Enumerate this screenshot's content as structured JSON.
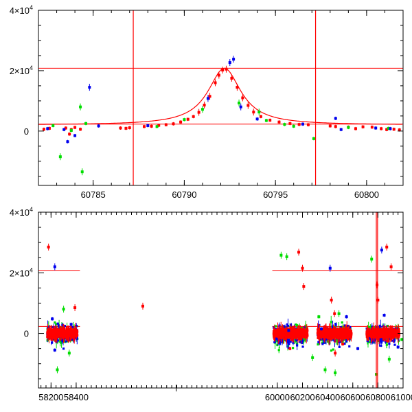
{
  "chart_data": [
    {
      "type": "scatter",
      "panel": "top",
      "title": "",
      "xlabel": "",
      "ylabel": "",
      "xlim": [
        60782,
        60802
      ],
      "ylim": [
        -18000,
        40000
      ],
      "x_ticks": [
        60785,
        60790,
        60795,
        60800
      ],
      "x_tick_labels": [
        "60785",
        "60790",
        "60795",
        "60800"
      ],
      "y_ticks": [
        0,
        20000,
        40000
      ],
      "y_tick_labels": [
        {
          "base": "0",
          "exp": ""
        },
        {
          "base": "2×10",
          "exp": "4"
        },
        {
          "base": "4×10",
          "exp": "4"
        }
      ],
      "colors": {
        "red": "#ff0000",
        "green": "#00dd00",
        "blue": "#0000ee",
        "line": "#ff0000"
      },
      "vlines": [
        60787.2,
        60797.2
      ],
      "hlines": [
        20800,
        2300
      ],
      "model_curve": {
        "baseline": 2000,
        "peak_x": 60792.2,
        "peak_y": 20800,
        "width": 1.1
      },
      "series": [
        {
          "name": "red",
          "color": "#ff0000",
          "points": [
            [
              60782.3,
              600
            ],
            [
              60782.6,
              900
            ],
            [
              60783.5,
              1000
            ],
            [
              60783.7,
              -1000
            ],
            [
              60783.8,
              500
            ],
            [
              60784.0,
              1200
            ],
            [
              60784.3,
              600
            ],
            [
              60786.5,
              1000
            ],
            [
              60786.8,
              900
            ],
            [
              60787.0,
              1100
            ],
            [
              60787.8,
              1500
            ],
            [
              60788.2,
              1600
            ],
            [
              60788.6,
              1900
            ],
            [
              60789.0,
              2100
            ],
            [
              60789.4,
              2400
            ],
            [
              60789.8,
              3000
            ],
            [
              60790.2,
              3900
            ],
            [
              60790.5,
              4800
            ],
            [
              60790.8,
              6200
            ],
            [
              60791.1,
              8600
            ],
            [
              60791.4,
              11500
            ],
            [
              60791.7,
              16000
            ],
            [
              60791.9,
              18500
            ],
            [
              60792.1,
              20200
            ],
            [
              60792.3,
              20500
            ],
            [
              60792.6,
              17500
            ],
            [
              60792.9,
              14500
            ],
            [
              60793.2,
              11000
            ],
            [
              60793.5,
              8500
            ],
            [
              60793.8,
              6300
            ],
            [
              60794.2,
              4800
            ],
            [
              60794.7,
              3600
            ],
            [
              60795.2,
              3000
            ],
            [
              60795.8,
              2500
            ],
            [
              60796.3,
              2200
            ],
            [
              60796.8,
              2100
            ],
            [
              60798.0,
              1700
            ],
            [
              60798.3,
              1500
            ],
            [
              60799.0,
              1300
            ],
            [
              60799.4,
              800
            ],
            [
              60799.8,
              1400
            ],
            [
              60800.3,
              1300
            ],
            [
              60800.8,
              800
            ],
            [
              60801.1,
              500
            ],
            [
              60801.5,
              600
            ],
            [
              60801.8,
              400
            ]
          ]
        },
        {
          "name": "green",
          "color": "#00dd00",
          "points": [
            [
              60782.8,
              1800
            ],
            [
              60783.2,
              -8500
            ],
            [
              60783.8,
              200
            ],
            [
              60784.3,
              8000
            ],
            [
              60784.4,
              -13500
            ],
            [
              60784.6,
              2500
            ],
            [
              60788.5,
              1500
            ],
            [
              60790.0,
              3800
            ],
            [
              60791.0,
              7200
            ],
            [
              60793.0,
              9300
            ],
            [
              60794.1,
              6300
            ],
            [
              60794.5,
              3500
            ],
            [
              60795.5,
              2200
            ],
            [
              60796.0,
              1600
            ],
            [
              60797.1,
              -2500
            ],
            [
              60799.0,
              1200
            ],
            [
              60801.2,
              900
            ]
          ]
        },
        {
          "name": "blue",
          "color": "#0000ee",
          "points": [
            [
              60782.5,
              800
            ],
            [
              60783.4,
              500
            ],
            [
              60783.6,
              -3500
            ],
            [
              60784.0,
              -1500
            ],
            [
              60784.8,
              14500
            ],
            [
              60785.3,
              1700
            ],
            [
              60788.0,
              1800
            ],
            [
              60791.3,
              10800
            ],
            [
              60792.5,
              22700
            ],
            [
              60792.7,
              23800
            ],
            [
              60793.1,
              8000
            ],
            [
              60794.0,
              4000
            ],
            [
              60796.5,
              2300
            ],
            [
              60798.3,
              4200
            ],
            [
              60798.6,
              500
            ],
            [
              60800.5,
              1000
            ],
            [
              60801.3,
              800
            ]
          ]
        }
      ]
    },
    {
      "type": "scatter",
      "panel": "bottom",
      "title": "",
      "xlabel": "",
      "ylabel": "",
      "xlim": [
        58100,
        61000
      ],
      "ylim": [
        -18000,
        40000
      ],
      "x_break": {
        "left_end": 58430,
        "right_start": 59960
      },
      "x_ticks": [
        58200,
        58400,
        60000,
        60200,
        60400,
        60600,
        60800,
        61000
      ],
      "x_tick_labels": [
        "58200",
        "58400",
        "60000",
        "60200",
        "60400",
        "60600",
        "60800",
        "61000"
      ],
      "y_ticks": [
        0,
        20000,
        40000
      ],
      "y_tick_labels": [
        {
          "base": "0",
          "exp": ""
        },
        {
          "base": "2×10",
          "exp": "4"
        },
        {
          "base": "4×10",
          "exp": "4"
        }
      ],
      "colors": {
        "red": "#ff0000",
        "green": "#00dd00",
        "blue": "#0000ee",
        "line": "#ff0000"
      },
      "vlines": [
        60787.2,
        60797.2
      ],
      "hlines": [
        20800,
        2300
      ],
      "clusters": [
        {
          "x_from": 58170,
          "x_to": 58410,
          "spread": 6000
        },
        {
          "x_from": 59970,
          "x_to": 60240,
          "spread": 7000
        },
        {
          "x_from": 60320,
          "x_to": 60590,
          "spread": 7000
        },
        {
          "x_from": 60710,
          "x_to": 60970,
          "spread": 6000
        }
      ],
      "series": [
        {
          "name": "red",
          "color": "#ff0000",
          "points": [
            [
              58180,
              28500
            ],
            [
              58930,
              9000
            ],
            [
              58390,
              8500
            ],
            [
              60170,
              26800
            ],
            [
              60200,
              21500
            ],
            [
              60210,
              15500
            ],
            [
              60430,
              11000
            ],
            [
              60455,
              6500
            ],
            [
              60870,
              28500
            ],
            [
              60905,
              22000
            ],
            [
              60793,
              16000
            ],
            [
              60800,
              11000
            ],
            [
              60100,
              -5000
            ],
            [
              60460,
              -6500
            ],
            [
              60520,
              -3500
            ],
            [
              60880,
              -2500
            ]
          ]
        },
        {
          "name": "green",
          "color": "#00dd00",
          "points": [
            [
              60030,
              25800
            ],
            [
              60075,
              25300
            ],
            [
              60490,
              6500
            ],
            [
              60330,
              5500
            ],
            [
              60460,
              -13000
            ],
            [
              60280,
              -8000
            ],
            [
              60750,
              24500
            ],
            [
              60787,
              -13500
            ],
            [
              60890,
              -8500
            ],
            [
              58300,
              8000
            ],
            [
              58345,
              -6500
            ],
            [
              58250,
              -12000
            ],
            [
              60380,
              -12000
            ],
            [
              60990,
              -2000
            ]
          ]
        },
        {
          "name": "blue",
          "color": "#0000ee",
          "points": [
            [
              58230,
              22000
            ],
            [
              60420,
              21500
            ],
            [
              60830,
              27500
            ],
            [
              58210,
              4800
            ],
            [
              58360,
              3000
            ],
            [
              58230,
              -5500
            ],
            [
              60550,
              5500
            ],
            [
              60850,
              6000
            ],
            [
              60960,
              -4500
            ],
            [
              60090,
              1000
            ],
            [
              60350,
              1500
            ],
            [
              60640,
              -5000
            ]
          ]
        }
      ]
    }
  ]
}
